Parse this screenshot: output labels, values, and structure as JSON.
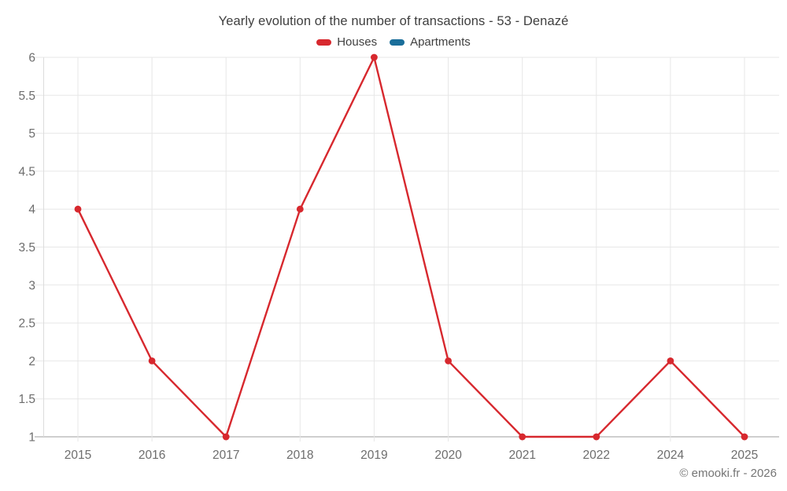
{
  "header": {
    "title": "Yearly evolution of the number of transactions - 53 - Denazé"
  },
  "legend": {
    "items": [
      {
        "label": "Houses",
        "color": "#d7282e"
      },
      {
        "label": "Apartments",
        "color": "#1a6e9a"
      }
    ]
  },
  "footer": {
    "credit": "© emooki.fr - 2026"
  },
  "chart_data": {
    "type": "line",
    "title": "Yearly evolution of the number of transactions - 53 - Denazé",
    "categories": [
      "2015",
      "2016",
      "2017",
      "2018",
      "2019",
      "2020",
      "2021",
      "2022",
      "2024",
      "2025"
    ],
    "series": [
      {
        "name": "Houses",
        "color": "#d7282e",
        "values": [
          4,
          2,
          1,
          4,
          6,
          2,
          1,
          1,
          2,
          1
        ]
      },
      {
        "name": "Apartments",
        "color": "#1a6e9a",
        "values": []
      }
    ],
    "xlabel": "",
    "ylabel": "",
    "ylim": [
      1,
      6
    ],
    "ytick_step": 0.5,
    "y_tick_labels": [
      "1",
      "1.5",
      "2",
      "2.5",
      "3",
      "3.5",
      "4",
      "4.5",
      "5",
      "5.5",
      "6"
    ],
    "grid": true,
    "legend_position": "top",
    "marker": "circle"
  }
}
